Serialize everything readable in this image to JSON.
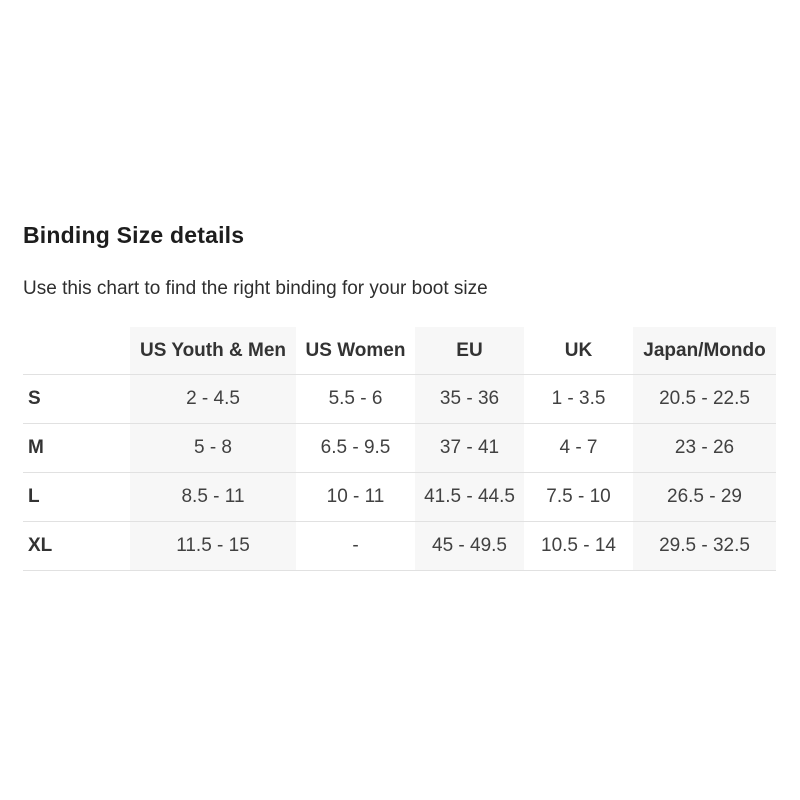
{
  "page": {
    "title": "Binding Size details",
    "subtitle": "Use this chart to find the right binding for your boot size"
  },
  "chart_data": {
    "type": "table",
    "title": "Binding Size details",
    "subtitle": "Use this chart to find the right binding for your boot size",
    "columns": [
      "",
      "US Youth & Men",
      "US Women",
      "EU",
      "UK",
      "Japan/Mondo"
    ],
    "rows": [
      [
        "S",
        "2 - 4.5",
        "5.5 - 6",
        "35 - 36",
        "1 - 3.5",
        "20.5 - 22.5"
      ],
      [
        "M",
        "5 - 8",
        "6.5 - 9.5",
        "37 - 41",
        "4 - 7",
        "23 - 26"
      ],
      [
        "L",
        "8.5 - 11",
        "10 - 11",
        "41.5 - 44.5",
        "7.5 - 10",
        "26.5 - 29"
      ],
      [
        "XL",
        "11.5 - 15",
        "-",
        "45 - 49.5",
        "10.5 - 14",
        "29.5 - 32.5"
      ]
    ],
    "layout": {
      "striped_column_indexes": [
        1,
        3,
        5
      ],
      "row_labels_bold": true,
      "grid": "horizontal-dividers-only"
    }
  },
  "colors": {
    "background": "#ffffff",
    "column_stripe": "#f7f7f7",
    "row_divider": "#e1e1e1",
    "heading_text": "#1d1d1d",
    "header_text": "#333333",
    "cell_text": "#414141"
  }
}
